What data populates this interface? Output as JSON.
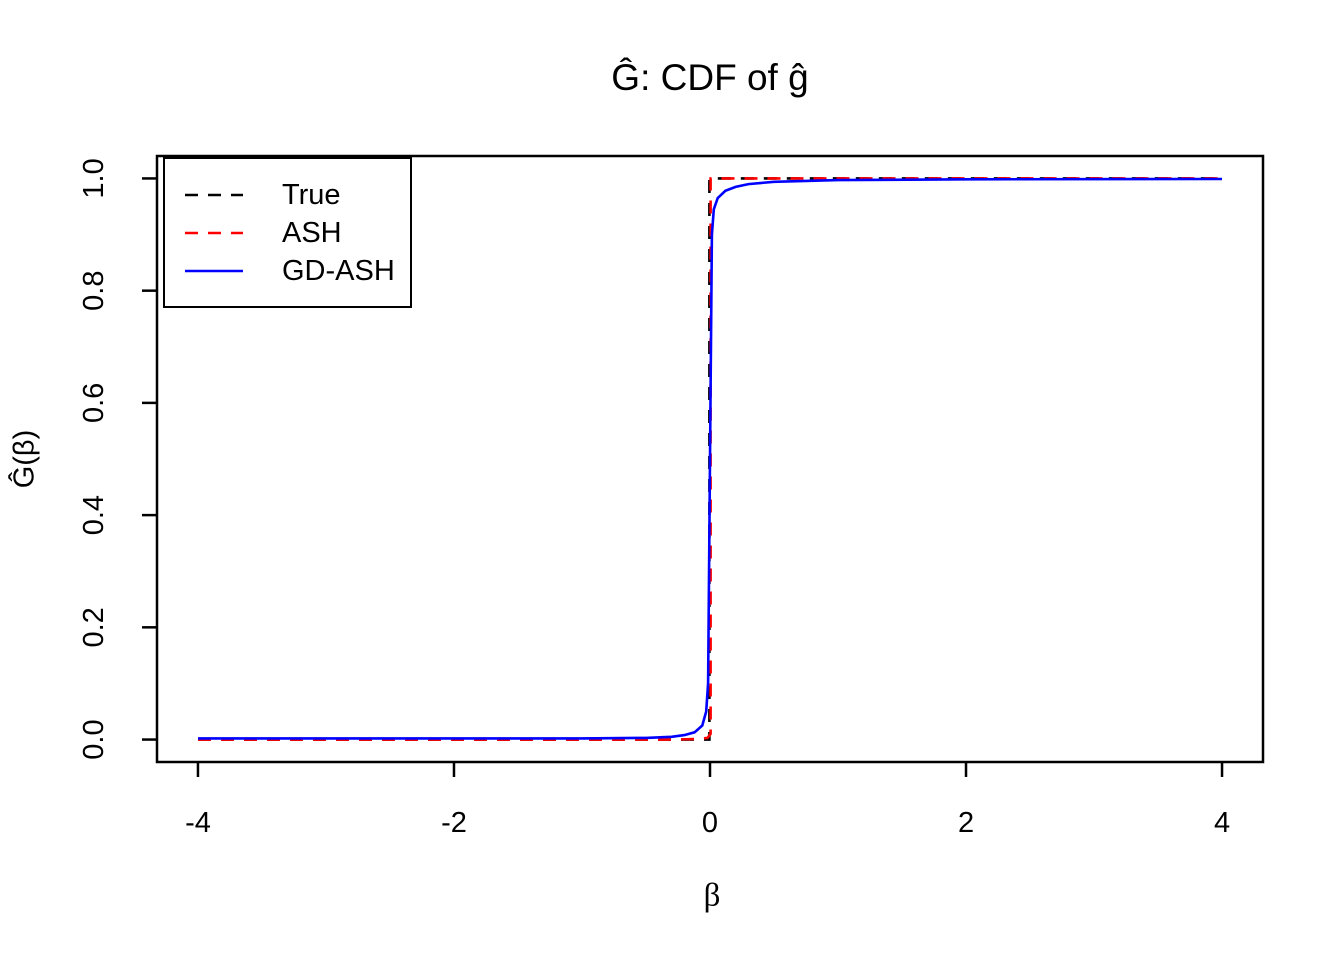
{
  "figure": {
    "background": "#FFFFFF",
    "axis_color": "#000000"
  },
  "chart_data": {
    "type": "line",
    "title": "Ĝ: CDF of ĝ",
    "xlabel": "β",
    "ylabel": "Ĝ(β)",
    "xlim": [
      -4,
      4
    ],
    "ylim": [
      0,
      1
    ],
    "grid": false,
    "legend_position": "topleft",
    "x_ticks": [
      {
        "value": -4,
        "label": "-4"
      },
      {
        "value": -2,
        "label": "-2"
      },
      {
        "value": 0,
        "label": "0"
      },
      {
        "value": 2,
        "label": "2"
      },
      {
        "value": 4,
        "label": "4"
      }
    ],
    "y_ticks": [
      {
        "value": 0.0,
        "label": "0.0"
      },
      {
        "value": 0.2,
        "label": "0.2"
      },
      {
        "value": 0.4,
        "label": "0.4"
      },
      {
        "value": 0.6,
        "label": "0.6"
      },
      {
        "value": 0.8,
        "label": "0.8"
      },
      {
        "value": 1.0,
        "label": "1.0"
      }
    ],
    "series": [
      {
        "name": "True",
        "color": "#000000",
        "linestyle": "dashed",
        "description": "true CDF: point mass at 0 (step function)",
        "points": [
          [
            -4,
            0
          ],
          [
            -0.005,
            0
          ],
          [
            -0.005,
            1
          ],
          [
            4,
            1
          ]
        ]
      },
      {
        "name": "ASH",
        "color": "#FF0000",
        "linestyle": "dashed",
        "description": "ASH estimate, step at 0",
        "points": [
          [
            -4,
            0
          ],
          [
            -0.3,
            0
          ],
          [
            -0.1,
            0.001
          ],
          [
            -0.02,
            0.003
          ],
          [
            0.005,
            0.01
          ],
          [
            0.005,
            1
          ],
          [
            4,
            1
          ]
        ]
      },
      {
        "name": "GD-ASH",
        "color": "#0000FF",
        "linestyle": "solid",
        "description": "GD-ASH estimate, very steep sigmoid at 0",
        "points": [
          [
            -4,
            0.002
          ],
          [
            -1,
            0.002
          ],
          [
            -0.5,
            0.003
          ],
          [
            -0.3,
            0.005
          ],
          [
            -0.2,
            0.008
          ],
          [
            -0.12,
            0.013
          ],
          [
            -0.06,
            0.025
          ],
          [
            -0.03,
            0.05
          ],
          [
            -0.015,
            0.1
          ],
          [
            0,
            0.5
          ],
          [
            0.015,
            0.9
          ],
          [
            0.03,
            0.945
          ],
          [
            0.06,
            0.965
          ],
          [
            0.12,
            0.978
          ],
          [
            0.2,
            0.985
          ],
          [
            0.3,
            0.99
          ],
          [
            0.5,
            0.994
          ],
          [
            1,
            0.997
          ],
          [
            2,
            0.9985
          ],
          [
            4,
            0.999
          ]
        ]
      }
    ]
  }
}
